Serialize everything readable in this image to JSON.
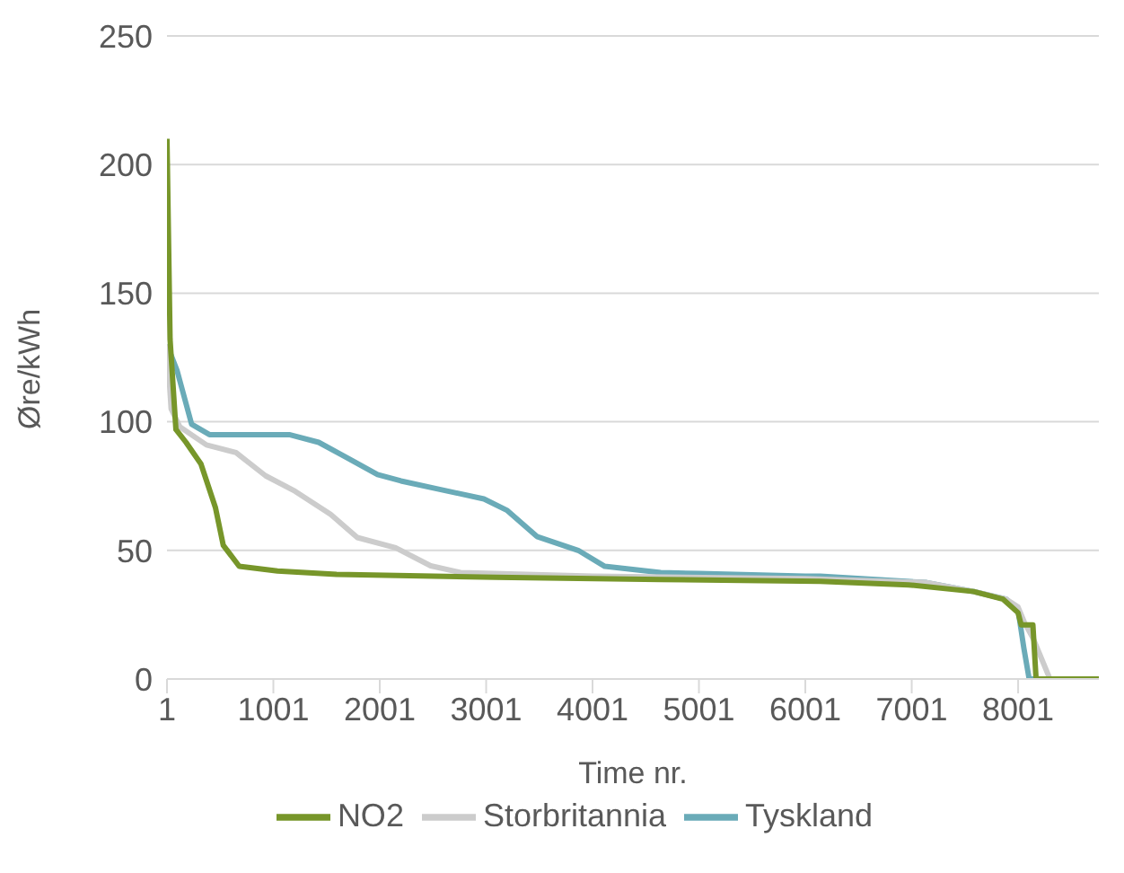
{
  "chart_data": {
    "type": "line",
    "xlabel": "Time nr.",
    "ylabel": "Øre/kWh",
    "xlim": [
      1,
      8760
    ],
    "xticks": [
      1,
      1001,
      2001,
      3001,
      4001,
      5001,
      6001,
      7001,
      8001
    ],
    "ylim": [
      0,
      250
    ],
    "yticks": [
      0,
      50,
      100,
      150,
      200,
      250
    ],
    "grid": "y",
    "legend": "bottom",
    "marker": "none",
    "line_style": "solid",
    "series": [
      {
        "name": "Tyskland",
        "color": "#6aabb8",
        "x": [
          1,
          95,
          233,
          400,
          1150,
          1427,
          1650,
          1980,
          2200,
          2535,
          2980,
          3200,
          3478,
          3866,
          4116,
          4642,
          5001,
          6001,
          6140,
          7140,
          7583,
          7890,
          8000,
          8055,
          8105,
          8760
        ],
        "values": [
          130,
          120,
          99,
          95,
          95,
          92,
          87,
          79.5,
          77,
          74,
          70,
          65.5,
          55.4,
          50,
          43.8,
          41.4,
          41,
          40,
          40,
          37.5,
          34,
          31,
          27,
          12,
          0,
          0
        ]
      },
      {
        "name": "Storbritannia",
        "color": "#cccccc",
        "x": [
          1,
          40,
          122,
          372,
          650,
          928,
          1205,
          1540,
          1790,
          2150,
          2480,
          2760,
          4000,
          6000,
          7140,
          7583,
          7890,
          8000,
          8060,
          8140,
          8300,
          8760
        ],
        "values": [
          130,
          105,
          98,
          91,
          88,
          79,
          73,
          64,
          55,
          51,
          44,
          41.4,
          40,
          39,
          37.5,
          34,
          31,
          28,
          22,
          16,
          0,
          0
        ]
      },
      {
        "name": "NO2",
        "color": "#77962a",
        "x": [
          1,
          30,
          85,
          180,
          320,
          456,
          530,
          680,
          1040,
          1595,
          3090,
          4642,
          6140,
          6970,
          7583,
          7860,
          8000,
          8030,
          8140,
          8170,
          8760
        ],
        "values": [
          210,
          132,
          97,
          92,
          83.6,
          66.7,
          52,
          43.8,
          42,
          40.7,
          39.5,
          38.7,
          38,
          36.6,
          34,
          31,
          25.8,
          21,
          21,
          0,
          0
        ]
      }
    ]
  }
}
